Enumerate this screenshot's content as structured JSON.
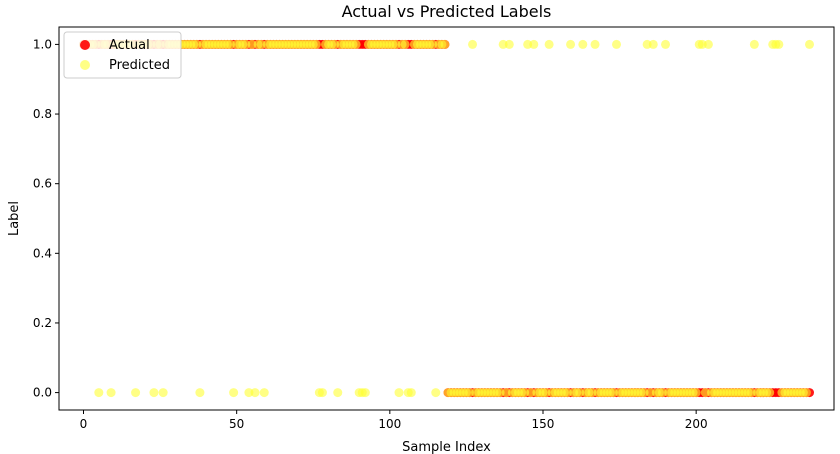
{
  "chart_data": {
    "type": "scatter",
    "title": "Actual vs Predicted Labels",
    "xlabel": "Sample Index",
    "ylabel": "Label",
    "xlim": [
      -8,
      245
    ],
    "ylim": [
      -0.05,
      1.05
    ],
    "x_ticks": [
      0,
      50,
      100,
      150,
      200
    ],
    "x_tick_labels": [
      "0",
      "50",
      "100",
      "150",
      "200"
    ],
    "y_ticks": [
      0.0,
      0.2,
      0.4,
      0.6,
      0.8,
      1.0
    ],
    "y_tick_labels": [
      "0.0",
      "0.2",
      "0.4",
      "0.6",
      "0.8",
      "1.0"
    ],
    "grid": false,
    "legend": {
      "placement": "top-left",
      "entries": [
        "Actual",
        "Predicted"
      ]
    },
    "series": [
      {
        "name": "Actual",
        "color": "#ff0000",
        "opacity": 0.9,
        "points": [
          {
            "x_from": 0,
            "x_to": 118,
            "y": 1
          },
          {
            "x_from": 119,
            "x_to": 237,
            "y": 0
          }
        ]
      },
      {
        "name": "Predicted",
        "color": "#ffff33",
        "opacity": 0.6,
        "points": [
          {
            "x_from": 0,
            "x_to": 118,
            "y": 1,
            "except": [
              5,
              9,
              17,
              23,
              26,
              38,
              49,
              54,
              56,
              59,
              77,
              78,
              83,
              90,
              91,
              92,
              103,
              106,
              107,
              115
            ]
          },
          {
            "x_from": 119,
            "x_to": 237,
            "y": 0,
            "except": [
              127,
              137,
              139,
              145,
              147,
              152,
              159,
              163,
              167,
              174,
              184,
              186,
              190,
              201,
              202,
              204,
              219,
              225,
              226,
              227,
              237
            ]
          }
        ],
        "extra_y1": [
          127,
          137,
          139,
          145,
          147,
          152,
          159,
          163,
          167,
          174,
          184,
          186,
          190,
          201,
          202,
          204,
          219,
          225,
          226,
          227,
          237
        ],
        "extra_y0": [
          5,
          9,
          17,
          23,
          26,
          38,
          49,
          54,
          56,
          59,
          77,
          78,
          83,
          90,
          91,
          92,
          103,
          106,
          107,
          115
        ]
      }
    ]
  }
}
